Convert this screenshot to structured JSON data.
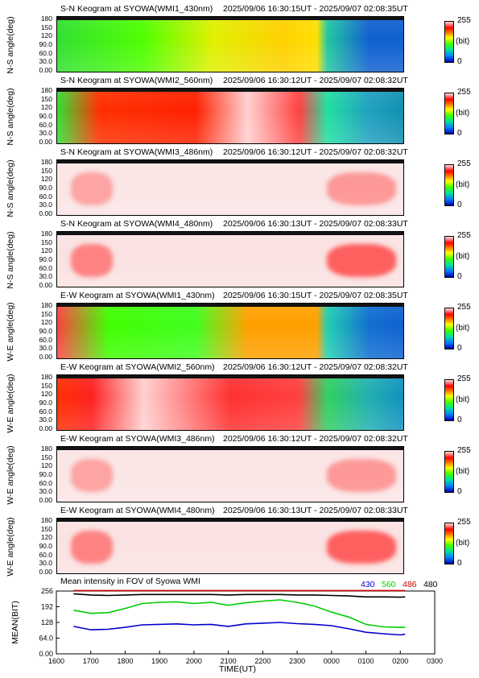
{
  "panels": [
    {
      "title": "S-N Keogram at SYOWA(WMI1_430nm)",
      "time_range": "2025/09/06 16:30:15UT - 2025/09/07 02:08:35UT",
      "ylabel": "N-S angle(deg)",
      "style": "g430"
    },
    {
      "title": "S-N Keogram at SYOWA(WMI2_560nm)",
      "time_range": "2025/09/06 16:30:12UT - 2025/09/07 02:08:32UT",
      "ylabel": "N-S angle(deg)",
      "style": "g560"
    },
    {
      "title": "S-N Keogram at SYOWA(WMI3_486nm)",
      "time_range": "2025/09/06 16:30:12UT - 2025/09/07 02:08:32UT",
      "ylabel": "N-S angle(deg)",
      "style": "pink"
    },
    {
      "title": "S-N Keogram at SYOWA(WMI4_480nm)",
      "time_range": "2025/09/06 16:30:13UT - 2025/09/07 02:08:33UT",
      "ylabel": "N-S angle(deg)",
      "style": "pink2"
    },
    {
      "title": "E-W Keogram at SYOWA(WMI1_430nm)",
      "time_range": "2025/09/06 16:30:15UT - 2025/09/07 02:08:35UT",
      "ylabel": "W-E angle(deg)",
      "style": "g430ew"
    },
    {
      "title": "E-W Keogram at SYOWA(WMI2_560nm)",
      "time_range": "2025/09/06 16:30:12UT - 2025/09/07 02:08:32UT",
      "ylabel": "W-E angle(deg)",
      "style": "g560ew"
    },
    {
      "title": "E-W Keogram at SYOWA(WMI3_486nm)",
      "time_range": "2025/09/06 16:30:12UT - 2025/09/07 02:08:32UT",
      "ylabel": "W-E angle(deg)",
      "style": "pink"
    },
    {
      "title": "E-W Keogram at SYOWA(WMI4_480nm)",
      "time_range": "2025/09/06 16:30:13UT - 2025/09/07 02:08:33UT",
      "ylabel": "W-E angle(deg)",
      "style": "pink2"
    }
  ],
  "angle_ticks": [
    "180",
    "150",
    "120",
    "90.0",
    "60.0",
    "30.0",
    "0.00"
  ],
  "colorbar": {
    "max": "255",
    "unit": "(bit)",
    "min": "0"
  },
  "chart_data": {
    "type": "line",
    "title": "Mean intensity in FOV of Syowa WMI",
    "xlabel": "TIME(UT)",
    "ylabel": "MEAN(BIT)",
    "x_ticks": [
      "1600",
      "1700",
      "1800",
      "1900",
      "2000",
      "2100",
      "2200",
      "2300",
      "0000",
      "0100",
      "0200",
      "0300"
    ],
    "y_ticks": [
      "256",
      "192",
      "128",
      "64.0",
      "0.00"
    ],
    "ylim": [
      0,
      256
    ],
    "x_hours": [
      16.5,
      17.0,
      17.5,
      18.0,
      18.5,
      19.0,
      19.5,
      20.0,
      20.5,
      21.0,
      21.5,
      22.0,
      22.5,
      23.0,
      23.5,
      24.0,
      24.5,
      25.0,
      25.5,
      26.0,
      26.14
    ],
    "series": [
      {
        "name": "430",
        "color": "#0000cc",
        "values": [
          112,
          98,
          100,
          108,
          118,
          120,
          122,
          118,
          120,
          112,
          122,
          125,
          128,
          123,
          120,
          115,
          102,
          88,
          82,
          77,
          80
        ]
      },
      {
        "name": "560",
        "color": "#00cc00",
        "values": [
          178,
          165,
          168,
          185,
          205,
          210,
          212,
          205,
          210,
          198,
          208,
          215,
          220,
          210,
          195,
          170,
          150,
          120,
          110,
          108,
          108
        ]
      },
      {
        "name": "486",
        "color": "#cc0000",
        "values": [
          258,
          258,
          258,
          258,
          258,
          258,
          258,
          258,
          258,
          258,
          258,
          258,
          258,
          258,
          258,
          258,
          258,
          258,
          258,
          258,
          258
        ]
      },
      {
        "name": "480",
        "color": "#000000",
        "values": [
          245,
          240,
          238,
          240,
          242,
          242,
          242,
          242,
          242,
          240,
          242,
          242,
          242,
          240,
          240,
          238,
          236,
          232,
          232,
          231,
          232
        ]
      }
    ]
  }
}
